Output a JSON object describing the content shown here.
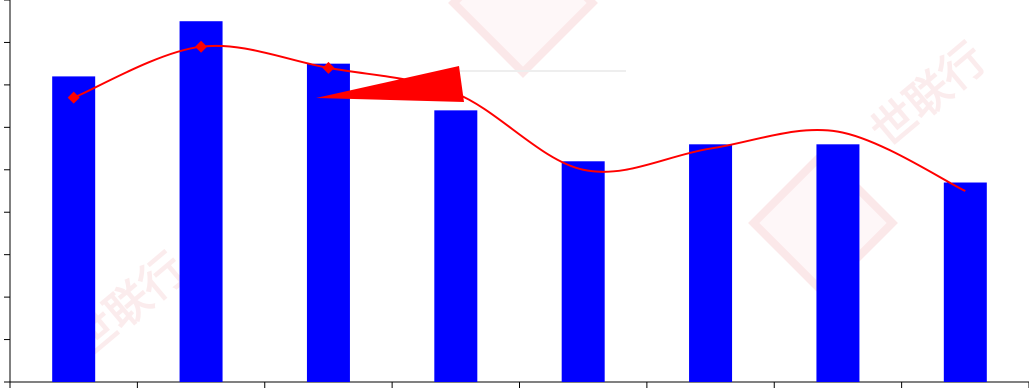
{
  "chart_data": {
    "type": "bar",
    "categories": [
      "",
      "",
      "",
      "",
      "",
      "",
      "",
      ""
    ],
    "series": [
      {
        "kind": "bar",
        "values": [
          7.2,
          8.5,
          7.5,
          6.4,
          5.2,
          5.6,
          5.6,
          4.7
        ]
      },
      {
        "kind": "line",
        "values": [
          6.7,
          7.9,
          7.4,
          6.8,
          5.0,
          5.5,
          5.9,
          4.5
        ],
        "markers": [
          true,
          true,
          true,
          false,
          false,
          false,
          false,
          false
        ]
      }
    ],
    "ylim": [
      0,
      9
    ],
    "grid": false,
    "annotation": {
      "type": "arrow",
      "color": "#ff0000"
    }
  },
  "colors": {
    "bar": "#0000ff",
    "line": "#ff0000",
    "axis": "#000000"
  },
  "watermark": {
    "text": "世联行"
  }
}
